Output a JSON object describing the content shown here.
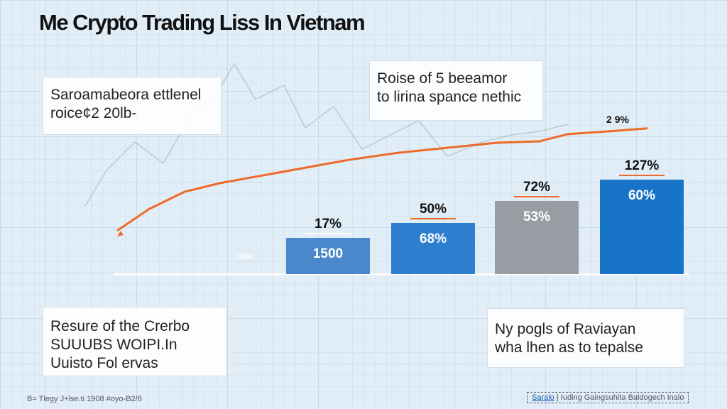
{
  "title": "Me Crypto Trading Liss In Vietnam",
  "boxes": [
    {
      "lines": [
        "Saroamabeora ettlenel",
        "roice¢2 20lb-"
      ]
    },
    {
      "lines": [
        "Roise of 5 beeamor",
        "to lirina spance nethic"
      ]
    },
    {
      "lines": [
        "Resure of the Crerbo",
        "SUUUBS WOIPI.In",
        "Uuisto Fol ervas"
      ]
    },
    {
      "lines": [
        "Ny pogls of Raviayan",
        "wha lhen as to tepalse"
      ]
    }
  ],
  "footer": {
    "left": "B= Tlegy J+lse.ti 1908 #oyo-B2/6",
    "right_tag": "Saralo",
    "right": "Iuding Gaingsuhita Baldogech Inalo"
  },
  "chart_data": {
    "type": "bar",
    "categories": [
      "",
      "",
      "",
      ""
    ],
    "small_label": "20%",
    "bars": [
      {
        "top_label": "17%",
        "inner_label": "1500",
        "color": "#4a88cc"
      },
      {
        "top_label": "50%",
        "inner_label": "68%",
        "color": "#2f7fd0"
      },
      {
        "top_label": "72%",
        "inner_label": "53%",
        "color": "#999da3"
      },
      {
        "top_label": "127%",
        "inner_label": "60%",
        "color": "#1874c8"
      }
    ],
    "values": [
      17,
      50,
      72,
      127
    ],
    "line": {
      "color": "#ee6a2a",
      "end_label": "2 9%",
      "values": [
        5,
        20,
        32,
        38,
        46,
        54,
        59,
        63,
        66,
        67,
        72,
        74,
        76
      ]
    },
    "grid": true
  }
}
